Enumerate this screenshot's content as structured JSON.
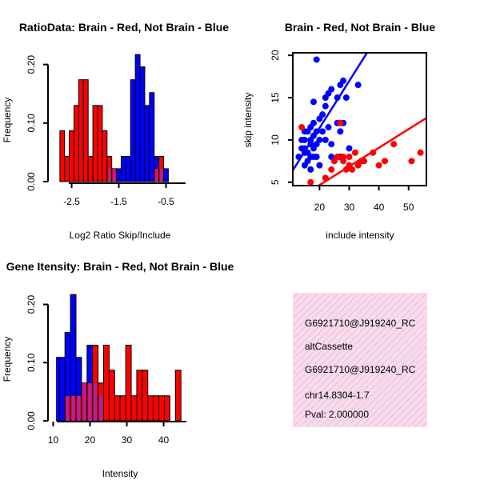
{
  "chart_data": [
    {
      "type": "bar",
      "title": "RatioData: Brain - Red, Not Brain - Blue",
      "xlabel": "Log2 Ratio Skip/Include",
      "ylabel": "Frequency",
      "xlim": [
        -2.9,
        -0.05
      ],
      "ylim": [
        0,
        0.22
      ],
      "bin_width": 0.1,
      "bins_start": -2.75,
      "xticks": [
        -2.5,
        -1.5,
        -0.5
      ],
      "xtick_labels": [
        "-2.5",
        "-1.5",
        "-0.5"
      ],
      "yticks": [
        0,
        0.1,
        0.2
      ],
      "ytick_labels": [
        "0.00",
        "0.10",
        "0.20"
      ],
      "series": [
        {
          "name": "Not Brain",
          "color": "#0000ff",
          "values": [
            0,
            0,
            0,
            0,
            0,
            0,
            0,
            0,
            0,
            0,
            0.022,
            0.022,
            0.022,
            0.043,
            0.043,
            0.174,
            0.217,
            0.196,
            0.13,
            0.152,
            0.043,
            0.022,
            0.022
          ]
        },
        {
          "name": "Brain",
          "color": "#ff0000",
          "values": [
            0.087,
            0.043,
            0.087,
            0.13,
            0.174,
            0.174,
            0.043,
            0.13,
            0.13,
            0.087,
            0.043,
            0.022,
            0,
            0,
            0,
            0,
            0,
            0,
            0,
            0,
            0.022,
            0.043,
            0
          ]
        }
      ],
      "overlap_color": "#aa22aa"
    },
    {
      "type": "scatter",
      "title": "Brain - Red, Not Brain - Blue",
      "xlabel": "include intensity",
      "ylabel": "skip intensity",
      "xlim": [
        11,
        56
      ],
      "ylim": [
        4.6,
        20.3
      ],
      "xticks": [
        20,
        30,
        40,
        50
      ],
      "xtick_labels": [
        "20",
        "30",
        "40",
        "50"
      ],
      "yticks": [
        5,
        10,
        15,
        20
      ],
      "ytick_labels": [
        "5",
        "10",
        "15",
        "20"
      ],
      "series": [
        {
          "name": "Not Brain",
          "color": "#0000ff",
          "x": [
            13,
            14,
            14,
            15,
            15,
            15,
            15,
            16,
            16,
            16,
            17,
            17,
            17,
            17,
            18,
            18,
            18,
            18,
            18,
            19,
            19,
            19,
            19,
            20,
            20,
            20,
            21,
            21,
            22,
            22,
            22,
            23,
            23,
            24,
            24,
            24,
            26,
            26,
            27,
            27,
            27,
            28,
            28,
            29,
            30,
            33,
            17,
            15
          ],
          "y": [
            8,
            9,
            10,
            7,
            8.5,
            9,
            10,
            7.5,
            8.5,
            11,
            8,
            9.5,
            10,
            11.5,
            8,
            9,
            10.5,
            12,
            14.5,
            8,
            9.5,
            11,
            19.5,
            7,
            10,
            12.5,
            11,
            13,
            10,
            14,
            15,
            11.5,
            15.5,
            8,
            9.5,
            16,
            12,
            15,
            8,
            11,
            16.5,
            12,
            17,
            15,
            9,
            16.5,
            6.5,
            11
          ]
        },
        {
          "name": "Brain",
          "color": "#ff0000",
          "x": [
            14,
            17,
            22,
            24,
            25,
            26,
            27,
            28,
            29,
            30,
            31,
            32,
            33,
            34,
            35,
            38,
            40,
            42,
            45,
            51,
            54,
            30,
            28
          ],
          "y": [
            11.5,
            5,
            5.5,
            6.5,
            7.5,
            8,
            12,
            8,
            6.5,
            7,
            6.5,
            8.5,
            7,
            7.5,
            7.5,
            8.5,
            7,
            7.5,
            9.5,
            7.5,
            8.5,
            8,
            7.5
          ]
        }
      ],
      "fit_lines": [
        {
          "series": "Not Brain",
          "color": "#0000ff",
          "x": [
            11,
            36
          ],
          "y": [
            6.4,
            20.3
          ]
        },
        {
          "series": "Brain",
          "color": "#ff0000",
          "x": [
            17,
            56
          ],
          "y": [
            4.0,
            12.6
          ]
        }
      ]
    },
    {
      "type": "bar",
      "title": "Gene Itensity: Brain - Red, Not Brain - Blue",
      "xlabel": "Intensity",
      "ylabel": "Frequency",
      "xlim": [
        9.9,
        46.4
      ],
      "ylim": [
        0,
        0.22
      ],
      "bin_width": 1.5,
      "bins_start": 10.2,
      "xticks": [
        10,
        20,
        30,
        40
      ],
      "xtick_labels": [
        "10",
        "20",
        "30",
        "40"
      ],
      "yticks": [
        0,
        0.1,
        0.2
      ],
      "ytick_labels": [
        "0.00",
        "0.10",
        "0.20"
      ],
      "series": [
        {
          "name": "Not Brain",
          "color": "#0000ff",
          "values": [
            0.109,
            0.109,
            0.152,
            0.217,
            0.109,
            0.065,
            0.13,
            0.065,
            0.043,
            0,
            0,
            0,
            0,
            0,
            0,
            0,
            0,
            0,
            0,
            0,
            0,
            0,
            0,
            0
          ]
        },
        {
          "name": "Brain",
          "color": "#ff0000",
          "values": [
            0,
            0,
            0.043,
            0.043,
            0.043,
            0.065,
            0.065,
            0.13,
            0.065,
            0.13,
            0.087,
            0.043,
            0.043,
            0.13,
            0.043,
            0.087,
            0.087,
            0.043,
            0.043,
            0.043,
            0.043,
            0,
            0.087,
            0
          ]
        }
      ],
      "overlap_color": "#aa22aa"
    }
  ],
  "info_panel": {
    "lines": [
      "G6921710@J919240_RC",
      "altCassette",
      "G6921710@J919240_RC",
      "chr14.8304-1.7"
    ],
    "pval": "Pval: 2.000000",
    "bg_color": "#f6dcec",
    "pval_color": "#cc0000"
  }
}
